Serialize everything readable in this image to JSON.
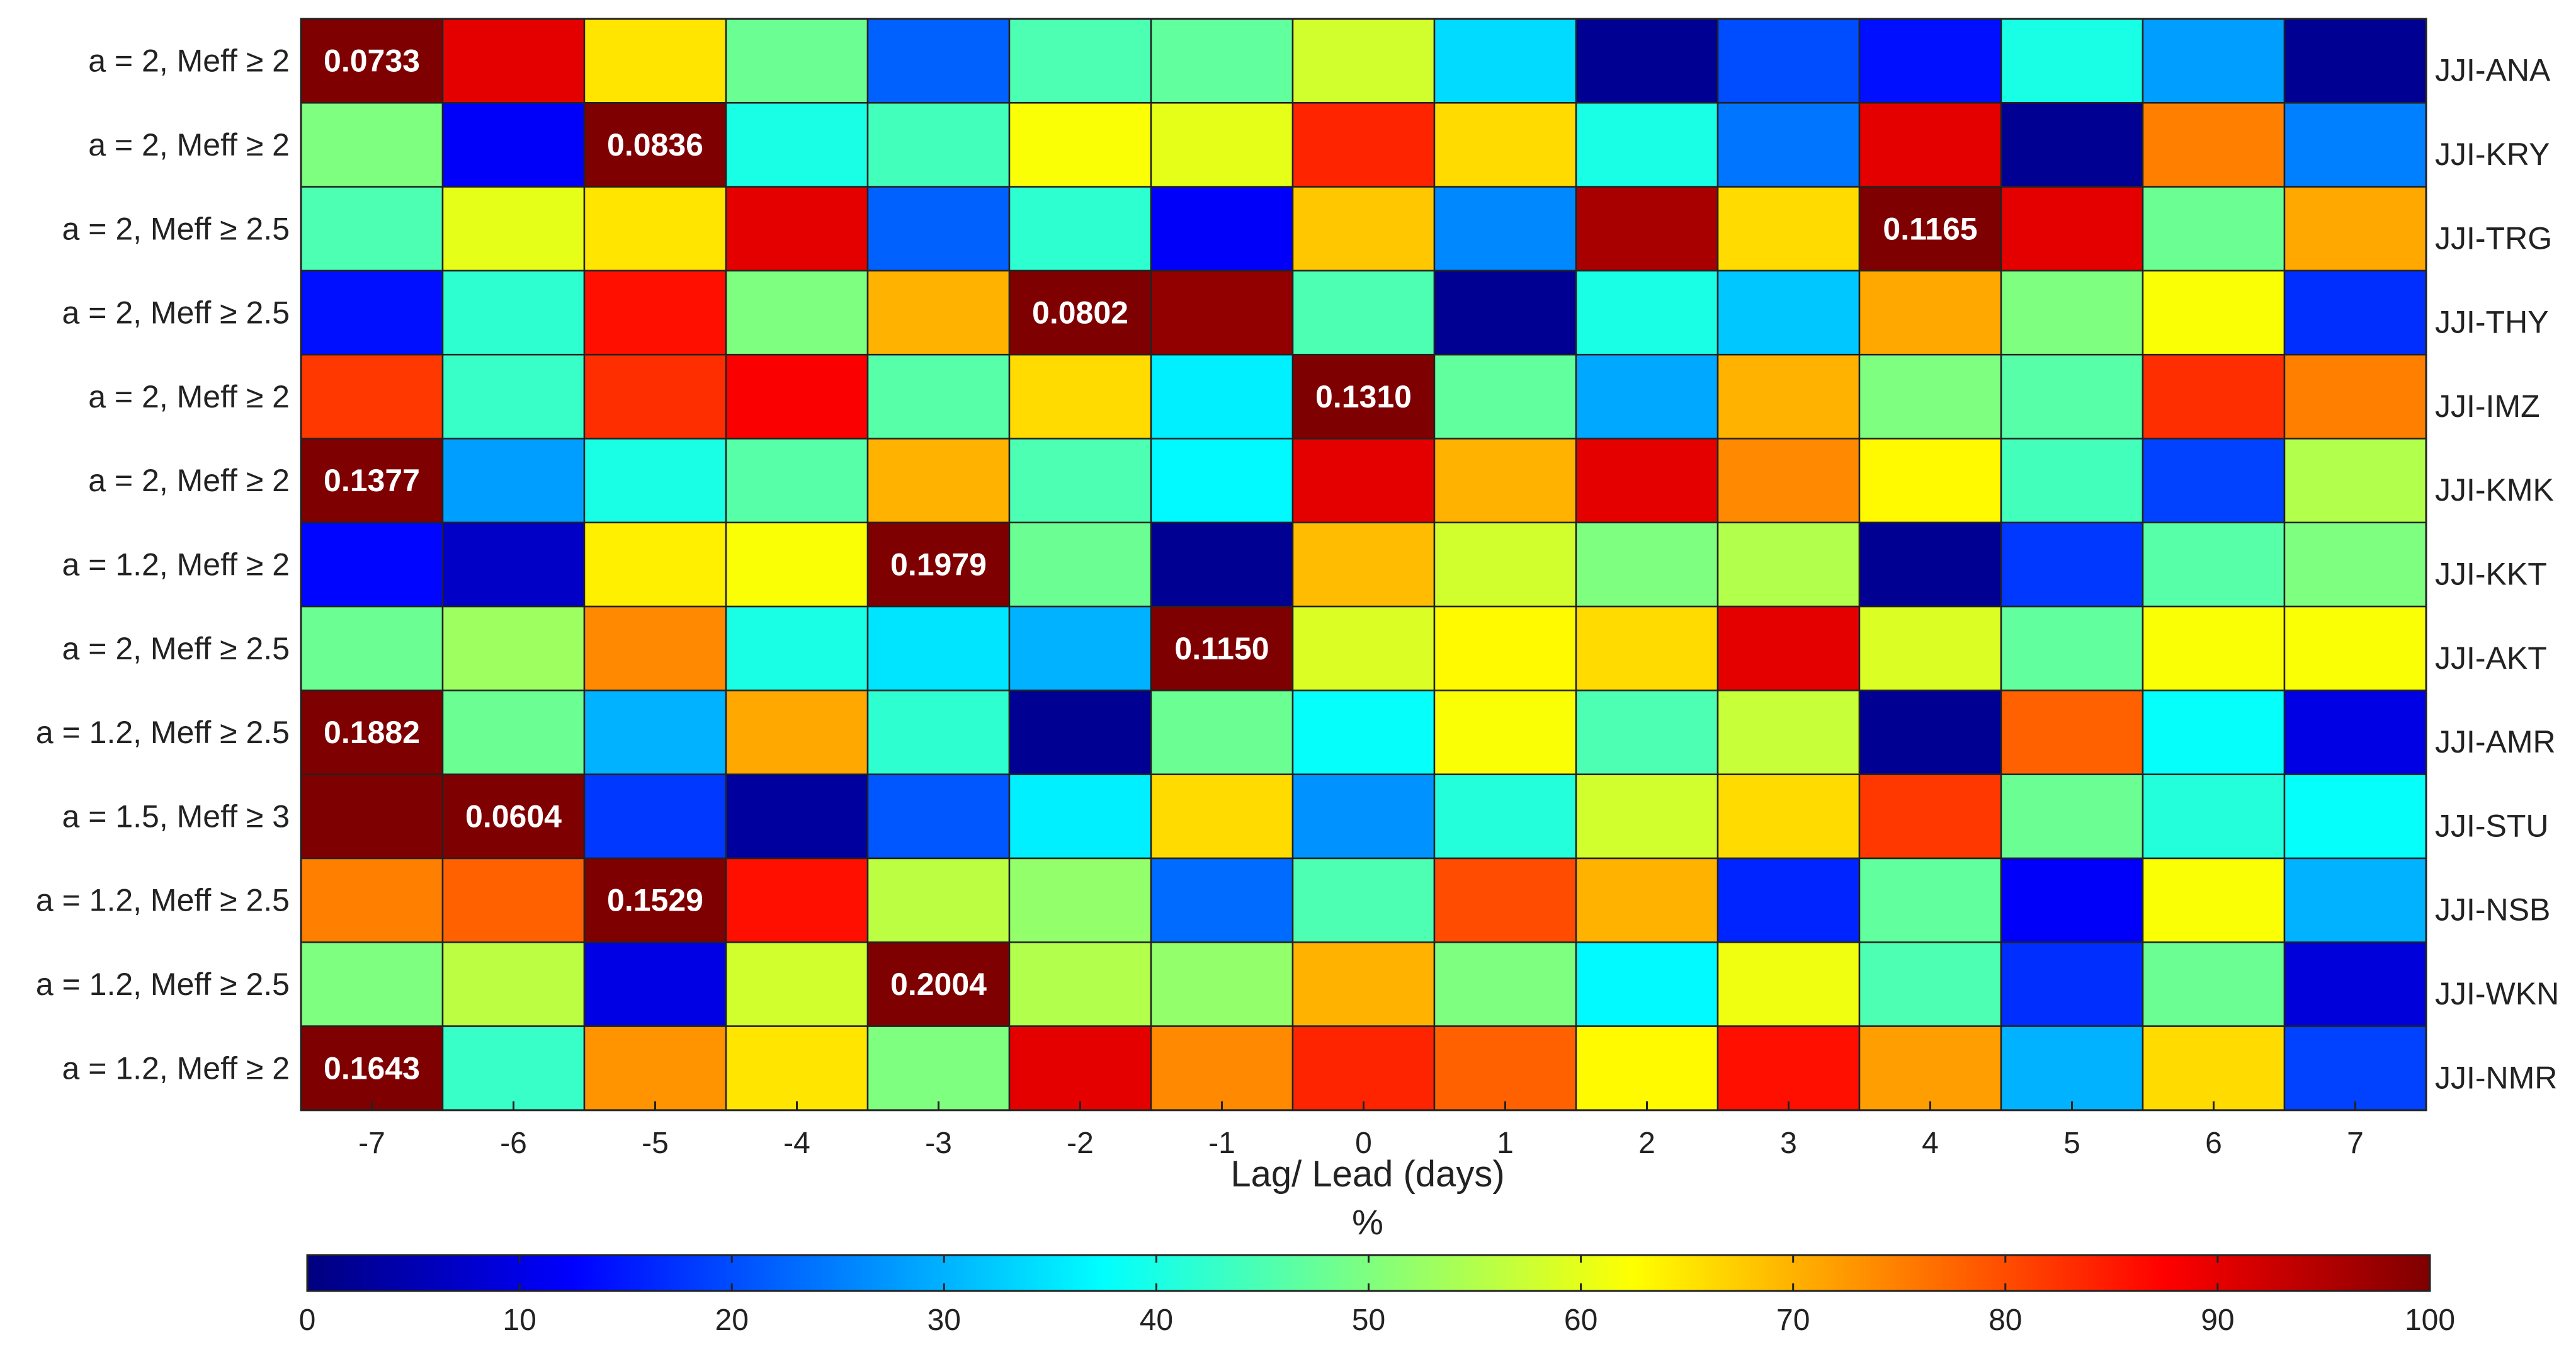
{
  "chart_data": {
    "type": "heatmap",
    "title": "",
    "xlabel": "Lag/ Lead (days)",
    "ylabel": "",
    "x": [
      "-7",
      "-6",
      "-5",
      "-4",
      "-3",
      "-2",
      "-1",
      "0",
      "1",
      "2",
      "3",
      "4",
      "5",
      "6",
      "7"
    ],
    "rows_left": [
      "a = 2, Meff ≥ 2",
      "a = 2, Meff ≥ 2",
      "a = 2, Meff ≥ 2.5",
      "a = 2, Meff ≥ 2.5",
      "a = 2, Meff ≥ 2",
      "a = 2, Meff ≥ 2",
      "a = 1.2, Meff ≥ 2",
      "a = 2, Meff ≥ 2.5",
      "a = 1.2, Meff ≥ 2.5",
      "a = 1.5, Meff ≥ 3",
      "a = 1.2, Meff ≥ 2.5",
      "a = 1.2, Meff ≥ 2.5",
      "a = 1.2, Meff ≥ 2"
    ],
    "rows_right": [
      "JJI-ANA",
      "JJI-KRY",
      "JJI-TRG",
      "JJI-THY",
      "JJI-IMZ",
      "JJI-KMK",
      "JJI-KKT",
      "JJI-AKT",
      "JJI-AMR",
      "JJI-STU",
      "JJI-NSB",
      "JJI-WKN",
      "JJI-NMR"
    ],
    "values": [
      [
        100,
        90,
        65,
        48,
        22,
        45,
        47,
        58,
        34,
        2,
        20,
        14,
        40,
        28,
        2
      ],
      [
        50,
        12,
        100,
        40,
        44,
        62,
        60,
        84,
        66,
        40,
        24,
        90,
        2,
        75,
        25
      ],
      [
        45,
        60,
        65,
        90,
        22,
        42,
        12,
        68,
        26,
        96,
        66,
        100,
        90,
        48,
        71
      ],
      [
        14,
        42,
        86,
        50,
        70,
        100,
        98,
        45,
        2,
        40,
        32,
        71,
        50,
        62,
        17
      ],
      [
        82,
        43,
        83,
        88,
        46,
        66,
        36,
        100,
        47,
        29,
        70,
        50,
        46,
        83,
        75
      ],
      [
        100,
        28,
        40,
        46,
        70,
        45,
        37,
        90,
        70,
        90,
        74,
        63,
        44,
        19,
        55
      ],
      [
        13,
        7,
        64,
        62,
        100,
        48,
        2,
        69,
        58,
        50,
        55,
        2,
        18,
        46,
        50
      ],
      [
        48,
        53,
        74,
        40,
        35,
        30,
        100,
        59,
        63,
        66,
        90,
        59,
        47,
        62,
        62
      ],
      [
        100,
        48,
        30,
        71,
        42,
        2,
        48,
        38,
        62,
        45,
        57,
        2,
        78,
        38,
        10
      ],
      [
        100,
        100,
        18,
        3,
        21,
        36,
        66,
        27,
        41,
        58,
        66,
        82,
        48,
        41,
        38
      ],
      [
        75,
        78,
        100,
        86,
        56,
        52,
        23,
        45,
        80,
        70,
        16,
        47,
        12,
        62,
        30
      ],
      [
        50,
        56,
        10,
        58,
        100,
        55,
        52,
        70,
        50,
        37,
        61,
        45,
        17,
        48,
        9
      ],
      [
        100,
        43,
        73,
        65,
        50,
        90,
        74,
        84,
        78,
        63,
        86,
        72,
        30,
        66,
        19
      ]
    ],
    "cell_labels": [
      {
        "row": 0,
        "col": 0,
        "text": "0.0733"
      },
      {
        "row": 1,
        "col": 2,
        "text": "0.0836"
      },
      {
        "row": 2,
        "col": 11,
        "text": "0.1165"
      },
      {
        "row": 3,
        "col": 5,
        "text": "0.0802"
      },
      {
        "row": 4,
        "col": 7,
        "text": "0.1310"
      },
      {
        "row": 5,
        "col": 0,
        "text": "0.1377"
      },
      {
        "row": 6,
        "col": 4,
        "text": "0.1979"
      },
      {
        "row": 7,
        "col": 6,
        "text": "0.1150"
      },
      {
        "row": 8,
        "col": 0,
        "text": "0.1882"
      },
      {
        "row": 9,
        "col": 1,
        "text": "0.0604"
      },
      {
        "row": 10,
        "col": 2,
        "text": "0.1529"
      },
      {
        "row": 11,
        "col": 4,
        "text": "0.2004"
      },
      {
        "row": 12,
        "col": 0,
        "text": "0.1643"
      }
    ],
    "colorbar": {
      "label": "%",
      "range": [
        0,
        100
      ],
      "ticks": [
        "0",
        "10",
        "20",
        "30",
        "40",
        "50",
        "60",
        "70",
        "80",
        "90",
        "100"
      ],
      "colormap": "jet",
      "colors": [
        "#00007f",
        "#0000ff",
        "#007fff",
        "#00ffff",
        "#7fff7f",
        "#ffff00",
        "#ff7f00",
        "#ff0000",
        "#7f0000"
      ]
    },
    "grid": true,
    "legend": "bottom"
  }
}
